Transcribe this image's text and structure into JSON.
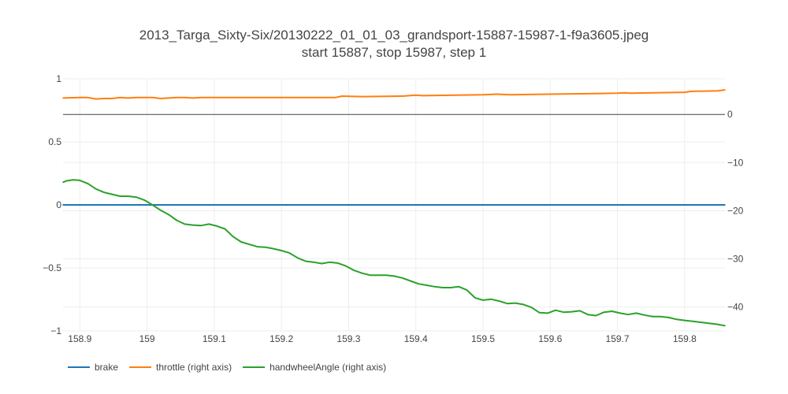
{
  "chart_data": {
    "type": "line",
    "title": "2013_Targa_Sixty-Six/20130222_01_01_03_grandsport-15887-15987-1-f9a3605.jpeg",
    "subtitle": "start 15887, stop 15987, step 1",
    "x_range": [
      158.875,
      159.86
    ],
    "x_ticks": [
      158.9,
      159,
      159.1,
      159.2,
      159.3,
      159.4,
      159.5,
      159.6,
      159.7,
      159.8
    ],
    "x_tick_labels": [
      "158.9",
      "159",
      "159.1",
      "159.2",
      "159.3",
      "159.4",
      "159.5",
      "159.6",
      "159.7",
      "159.8"
    ],
    "y_left": {
      "range": [
        -1,
        1
      ],
      "ticks": [
        1,
        0.5,
        0,
        -0.5,
        -1
      ],
      "tick_labels": [
        "1",
        "0.5",
        "0",
        "−0.5",
        "−1"
      ]
    },
    "y_right": {
      "range": [
        -45,
        7.4
      ],
      "ticks": [
        0,
        -10,
        -20,
        -30,
        -40
      ],
      "tick_labels": [
        "0",
        "−10",
        "−20",
        "−30",
        "−40"
      ]
    },
    "grid": true,
    "legend_position": "bottom-left",
    "series": [
      {
        "name": "brake",
        "axis": "left",
        "color": "#1f77b4",
        "x": [
          158.875,
          159.86
        ],
        "y": [
          0,
          0
        ]
      },
      {
        "name": "throttle (right axis)",
        "axis": "right",
        "color": "#ff7f0e",
        "x": [
          158.875,
          158.9,
          158.912,
          158.924,
          158.936,
          158.948,
          158.96,
          158.972,
          158.984,
          158.996,
          159.008,
          159.02,
          159.032,
          159.044,
          159.056,
          159.068,
          159.08,
          159.2,
          159.28,
          159.29,
          159.32,
          159.38,
          159.4,
          159.41,
          159.5,
          159.52,
          159.54,
          159.6,
          159.7,
          159.71,
          159.72,
          159.8,
          159.81,
          159.85,
          159.86
        ],
        "y": [
          3.4,
          3.5,
          3.5,
          3.2,
          3.3,
          3.3,
          3.5,
          3.4,
          3.5,
          3.5,
          3.5,
          3.3,
          3.4,
          3.5,
          3.5,
          3.4,
          3.5,
          3.5,
          3.5,
          3.8,
          3.7,
          3.8,
          4.0,
          3.9,
          4.1,
          4.2,
          4.1,
          4.2,
          4.4,
          4.5,
          4.4,
          4.6,
          4.8,
          4.9,
          5.1
        ]
      },
      {
        "name": "handwheelAngle (right axis)",
        "axis": "right",
        "color": "#2ca02c",
        "x": [
          158.875,
          158.88,
          158.89,
          158.9,
          158.912,
          158.924,
          158.936,
          158.948,
          158.96,
          158.972,
          158.984,
          158.996,
          159.008,
          159.02,
          159.032,
          159.044,
          159.056,
          159.068,
          159.08,
          159.092,
          159.104,
          159.116,
          159.128,
          159.14,
          159.152,
          159.164,
          159.176,
          159.188,
          159.2,
          159.212,
          159.224,
          159.236,
          159.248,
          159.26,
          159.272,
          159.284,
          159.296,
          159.308,
          159.32,
          159.332,
          159.344,
          159.356,
          159.368,
          159.38,
          159.392,
          159.404,
          159.416,
          159.428,
          159.44,
          159.452,
          159.464,
          159.476,
          159.488,
          159.5,
          159.512,
          159.524,
          159.536,
          159.548,
          159.56,
          159.572,
          159.584,
          159.596,
          159.608,
          159.62,
          159.632,
          159.644,
          159.656,
          159.668,
          159.68,
          159.692,
          159.704,
          159.716,
          159.728,
          159.74,
          159.752,
          159.764,
          159.776,
          159.788,
          159.8,
          159.812,
          159.824,
          159.836,
          159.848,
          159.86
        ],
        "y": [
          -14.1,
          -13.8,
          -13.6,
          -13.7,
          -14.4,
          -15.5,
          -16.2,
          -16.6,
          -17.0,
          -17.0,
          -17.2,
          -17.8,
          -18.8,
          -19.9,
          -20.8,
          -22.0,
          -22.8,
          -23.0,
          -23.1,
          -22.8,
          -23.2,
          -23.8,
          -25.4,
          -26.5,
          -27.0,
          -27.5,
          -27.6,
          -27.9,
          -28.3,
          -28.8,
          -29.8,
          -30.5,
          -30.7,
          -31.0,
          -30.7,
          -30.9,
          -31.5,
          -32.4,
          -33.0,
          -33.4,
          -33.4,
          -33.4,
          -33.6,
          -34.0,
          -34.6,
          -35.2,
          -35.5,
          -35.8,
          -36.0,
          -36.0,
          -35.8,
          -36.5,
          -38.1,
          -38.6,
          -38.4,
          -38.8,
          -39.3,
          -39.2,
          -39.5,
          -40.1,
          -41.2,
          -41.3,
          -40.7,
          -41.1,
          -41.0,
          -40.8,
          -41.6,
          -41.8,
          -41.1,
          -40.9,
          -41.3,
          -41.6,
          -41.3,
          -41.7,
          -42.0,
          -42.0,
          -42.2,
          -42.6,
          -42.8,
          -43.0,
          -43.2,
          -43.4,
          -43.6,
          -43.9
        ]
      }
    ]
  }
}
